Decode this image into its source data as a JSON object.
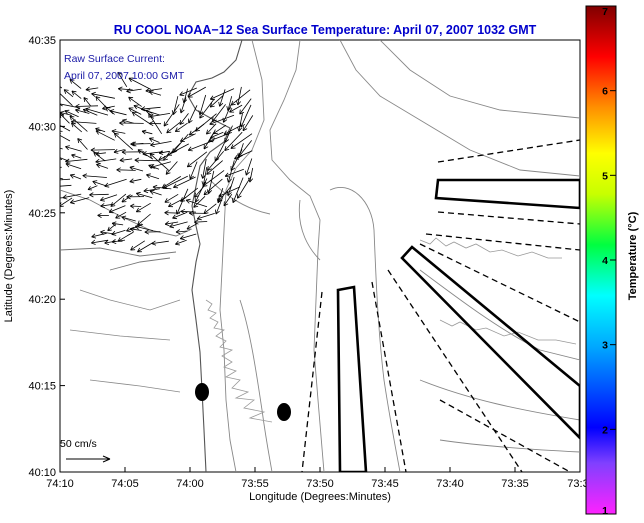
{
  "chart_data": {
    "type": "map",
    "title": "RU COOL  NOAA−12  Sea Surface Temperature:  April 07, 2007 1032 GMT",
    "title_color": "#0000cc",
    "annotation_lines": [
      "Raw Surface Current:",
      "April 07, 2007 10:00 GMT"
    ],
    "annotation_color": "#1a1aa6",
    "xlabel": "Longitude (Degrees:Minutes)",
    "ylabel": "Latitude (Degrees:Minutes)",
    "x_ticks": [
      "74:10",
      "74:05",
      "74:00",
      "73:55",
      "73:50",
      "73:45",
      "73:40",
      "73:35",
      "73:3"
    ],
    "y_ticks": [
      "40:35",
      "40:30",
      "40:25",
      "40:20",
      "40:15",
      "40:10"
    ],
    "x_range_min_west": [
      10,
      33
    ],
    "y_range_min_north": [
      10,
      35
    ],
    "scale_vector_label": "50 cm/s",
    "colorbar": {
      "label": "Temperature (°C)",
      "ticks": [
        "1",
        "2",
        "3",
        "4",
        "5",
        "6",
        "7"
      ],
      "range": [
        1,
        7
      ]
    },
    "current_vector_count_approx": 230,
    "markers": [
      {
        "name": "buoy-1",
        "lon_min_west": 59.3,
        "lat_min_north": 14.6
      },
      {
        "name": "buoy-2",
        "lon_min_west": 52.3,
        "lat_min_north": 13.5
      }
    ]
  }
}
